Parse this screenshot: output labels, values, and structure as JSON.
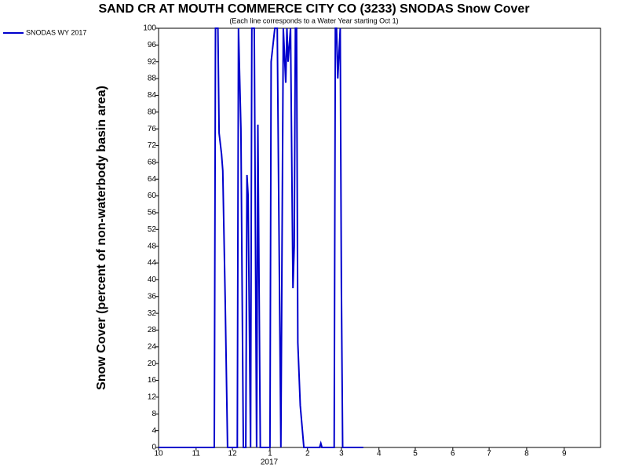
{
  "chart_data": {
    "type": "line",
    "title": "SAND CR AT MOUTH COMMERCE CITY CO (3233) SNODAS Snow Cover",
    "subtitle": "(Each line corresponds to a Water Year starting Oct 1)",
    "ylabel": "Snow Cover (percent of non-waterbody basin area)",
    "x_sublabel": "2017",
    "x": [
      0,
      46,
      47,
      49,
      50,
      52,
      53,
      55,
      57,
      65,
      66,
      68,
      70,
      72,
      73,
      74,
      76,
      77,
      79,
      81,
      82,
      84,
      92,
      93,
      96,
      98,
      101,
      103,
      105,
      106,
      107,
      109,
      111,
      112,
      113,
      114,
      115,
      117,
      120,
      133,
      134,
      135,
      145,
      146,
      147,
      148,
      150,
      151,
      152,
      169
    ],
    "series": [
      {
        "name": "SNODAS WY 2017",
        "color": "#0000cc",
        "values": [
          0,
          0,
          100,
          100,
          75,
          70,
          66,
          36,
          0,
          0,
          100,
          76,
          0,
          0,
          65,
          60,
          0,
          100,
          100,
          0,
          77,
          0,
          0,
          92,
          100,
          100,
          0,
          100,
          87,
          100,
          92,
          100,
          38,
          48,
          100,
          100,
          25,
          10,
          0,
          0,
          1,
          0,
          0,
          100,
          100,
          88,
          100,
          38,
          0,
          0
        ]
      }
    ],
    "xlim": [
      0,
      365
    ],
    "xticks": [
      {
        "value": 0,
        "label": "10"
      },
      {
        "value": 31,
        "label": "11"
      },
      {
        "value": 61,
        "label": "12"
      },
      {
        "value": 92,
        "label": "1"
      },
      {
        "value": 123,
        "label": "2"
      },
      {
        "value": 151,
        "label": "3"
      },
      {
        "value": 182,
        "label": "4"
      },
      {
        "value": 212,
        "label": "5"
      },
      {
        "value": 243,
        "label": "6"
      },
      {
        "value": 273,
        "label": "7"
      },
      {
        "value": 304,
        "label": "8"
      },
      {
        "value": 335,
        "label": "9"
      }
    ],
    "ylim": [
      0,
      100
    ],
    "yticks": [
      0,
      4,
      8,
      12,
      16,
      20,
      24,
      28,
      32,
      36,
      40,
      44,
      48,
      52,
      56,
      60,
      64,
      68,
      72,
      76,
      80,
      84,
      88,
      92,
      96,
      100
    ],
    "legend": "top-left",
    "grid": false
  }
}
